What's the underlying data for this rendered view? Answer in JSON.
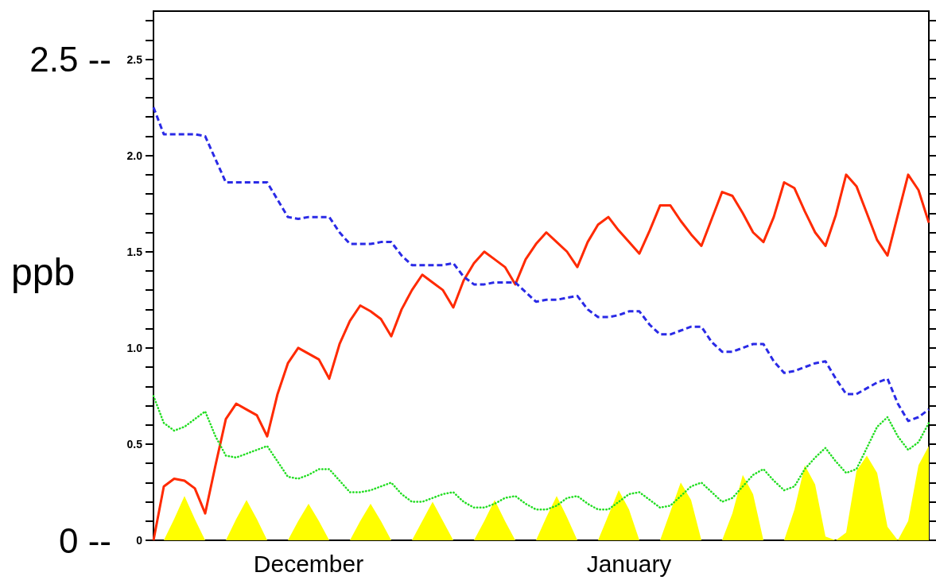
{
  "chart_data": {
    "type": "line",
    "y2label": "ppb",
    "categories": [
      null,
      null,
      null,
      null,
      null,
      null,
      null,
      null,
      null,
      null,
      null,
      null,
      null,
      null,
      null,
      "December",
      null,
      null,
      null,
      null,
      null,
      null,
      null,
      null,
      null,
      null,
      null,
      null,
      null,
      null,
      null,
      null,
      null,
      null,
      null,
      null,
      null,
      null,
      null,
      null,
      null,
      null,
      null,
      null,
      null,
      null,
      "January",
      null,
      null,
      null,
      null,
      null,
      null,
      null,
      null,
      null,
      null,
      null,
      null,
      null,
      null,
      null,
      null,
      null,
      null,
      null,
      null,
      null,
      null,
      null,
      null,
      null,
      null,
      null,
      null,
      null
    ],
    "ylim": [
      0,
      2.75
    ],
    "yticks": [
      0,
      {
        "value": 0.1,
        "label": null
      },
      {
        "value": 0.2,
        "label": null
      },
      {
        "value": 0.3,
        "label": null
      },
      {
        "value": 0.4,
        "label": null
      },
      0.5,
      {
        "value": 0.6,
        "label": null
      },
      {
        "value": 0.7,
        "label": null
      },
      {
        "value": 0.8,
        "label": null
      },
      {
        "value": 0.9,
        "label": null
      },
      {
        "value": 1,
        "label": "1.0"
      },
      {
        "value": 1.1,
        "label": null
      },
      {
        "value": 1.2,
        "label": null
      },
      {
        "value": 1.3,
        "label": null
      },
      {
        "value": 1.4,
        "label": null
      },
      1.5,
      {
        "value": 1.6,
        "label": null
      },
      {
        "value": 1.7,
        "label": null
      },
      {
        "value": 1.8,
        "label": null
      },
      {
        "value": 1.9,
        "label": null
      },
      {
        "value": 2,
        "label": "2.0"
      },
      {
        "value": 2.1,
        "label": null
      },
      {
        "value": 2.2,
        "label": null
      },
      {
        "value": 2.3,
        "label": null
      },
      {
        "value": 2.4,
        "label": null
      },
      2.5,
      {
        "value": 2.6,
        "label": null
      },
      {
        "value": 2.7,
        "label": null
      }
    ],
    "y2lim": [
      0,
      2.75
    ],
    "y2ticks": [
      {
        "value": 0,
        "label": "0 --"
      },
      {
        "value": 2.5,
        "label": "2.5 --"
      }
    ],
    "grid": false,
    "marker": "none",
    "series": [
      {
        "type": "area",
        "color": "#ffff00",
        "values": [
          0,
          0,
          0.11,
          0.23,
          0.11,
          0,
          0,
          0,
          0.11,
          0.21,
          0.11,
          0,
          0,
          0,
          0.1,
          0.19,
          0.1,
          0,
          0,
          0,
          0.1,
          0.19,
          0.1,
          0,
          0,
          0,
          0.1,
          0.2,
          0.1,
          0,
          0,
          0,
          0.1,
          0.21,
          0.1,
          0,
          0,
          0,
          0.12,
          0.23,
          0.12,
          0,
          0,
          0,
          0.13,
          0.26,
          0.16,
          0,
          0,
          0,
          0.15,
          0.3,
          0.21,
          0,
          0,
          0,
          0.14,
          0.34,
          0.24,
          0,
          0,
          0,
          0.16,
          0.39,
          0.29,
          0.02,
          0,
          0.04,
          0.36,
          0.44,
          0.35,
          0.07,
          0,
          0.1,
          0.39,
          0.49
        ]
      },
      {
        "color": "#ff2a00",
        "line_style": "solid",
        "values": [
          0,
          0.28,
          0.32,
          0.31,
          0.27,
          0.14,
          0.39,
          0.63,
          0.71,
          0.68,
          0.65,
          0.54,
          0.76,
          0.92,
          1.0,
          0.97,
          0.94,
          0.84,
          1.02,
          1.14,
          1.22,
          1.19,
          1.15,
          1.06,
          1.2,
          1.3,
          1.38,
          1.34,
          1.3,
          1.21,
          1.35,
          1.44,
          1.5,
          1.46,
          1.42,
          1.33,
          1.46,
          1.54,
          1.6,
          1.55,
          1.5,
          1.42,
          1.55,
          1.64,
          1.68,
          1.61,
          1.55,
          1.49,
          1.61,
          1.74,
          1.74,
          1.66,
          1.59,
          1.53,
          1.67,
          1.81,
          1.79,
          1.7,
          1.6,
          1.55,
          1.68,
          1.86,
          1.83,
          1.71,
          1.6,
          1.53,
          1.69,
          1.9,
          1.84,
          1.7,
          1.56,
          1.48,
          1.69,
          1.9,
          1.82,
          1.65
        ]
      },
      {
        "color": "#2a2ae6",
        "line_style": "dashed",
        "values": [
          2.25,
          2.11,
          2.11,
          2.11,
          2.11,
          2.1,
          1.98,
          1.86,
          1.86,
          1.86,
          1.86,
          1.86,
          1.77,
          1.68,
          1.67,
          1.68,
          1.68,
          1.68,
          1.6,
          1.54,
          1.54,
          1.54,
          1.55,
          1.55,
          1.48,
          1.43,
          1.43,
          1.43,
          1.43,
          1.44,
          1.37,
          1.33,
          1.33,
          1.34,
          1.34,
          1.34,
          1.29,
          1.24,
          1.25,
          1.25,
          1.26,
          1.27,
          1.2,
          1.16,
          1.16,
          1.17,
          1.19,
          1.19,
          1.12,
          1.07,
          1.07,
          1.09,
          1.11,
          1.11,
          1.03,
          0.98,
          0.98,
          1.0,
          1.02,
          1.02,
          0.93,
          0.87,
          0.88,
          0.9,
          0.92,
          0.93,
          0.84,
          0.76,
          0.76,
          0.79,
          0.82,
          0.84,
          0.71,
          0.62,
          0.64,
          0.68
        ]
      },
      {
        "color": "#22dd22",
        "line_style": "dotted",
        "values": [
          0.75,
          0.61,
          0.57,
          0.59,
          0.63,
          0.67,
          0.54,
          0.44,
          0.43,
          0.45,
          0.47,
          0.49,
          0.41,
          0.33,
          0.32,
          0.34,
          0.37,
          0.37,
          0.31,
          0.25,
          0.25,
          0.26,
          0.28,
          0.3,
          0.24,
          0.2,
          0.2,
          0.22,
          0.24,
          0.25,
          0.2,
          0.17,
          0.17,
          0.19,
          0.22,
          0.23,
          0.19,
          0.16,
          0.16,
          0.18,
          0.22,
          0.23,
          0.19,
          0.16,
          0.16,
          0.2,
          0.24,
          0.25,
          0.21,
          0.17,
          0.18,
          0.23,
          0.28,
          0.3,
          0.25,
          0.2,
          0.22,
          0.28,
          0.34,
          0.37,
          0.31,
          0.26,
          0.28,
          0.37,
          0.43,
          0.48,
          0.41,
          0.35,
          0.37,
          0.48,
          0.59,
          0.64,
          0.54,
          0.47,
          0.51,
          0.61
        ]
      }
    ]
  }
}
